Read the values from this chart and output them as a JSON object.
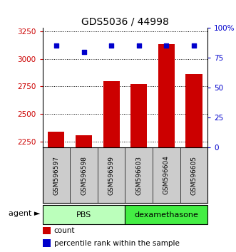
{
  "title": "GDS5036 / 44998",
  "samples": [
    "GSM596597",
    "GSM596598",
    "GSM596599",
    "GSM596603",
    "GSM596604",
    "GSM596605"
  ],
  "counts": [
    2340,
    2310,
    2800,
    2775,
    3130,
    2860
  ],
  "percentiles": [
    85,
    80,
    85,
    85,
    85,
    85
  ],
  "ylim_left": [
    2200,
    3280
  ],
  "ylim_right": [
    0,
    100
  ],
  "yticks_left": [
    2250,
    2500,
    2750,
    3000,
    3250
  ],
  "yticks_right": [
    0,
    25,
    50,
    75,
    100
  ],
  "ytick_labels_right": [
    "0",
    "25",
    "50",
    "75",
    "100%"
  ],
  "bar_color": "#cc0000",
  "dot_color": "#0000cc",
  "group_labels": [
    "PBS",
    "dexamethasone"
  ],
  "group_colors": [
    "#bbffbb",
    "#44ee44"
  ],
  "axis_left_color": "#cc0000",
  "axis_right_color": "#0000cc",
  "bar_width": 0.6,
  "agent_label": "agent",
  "figsize": [
    3.31,
    3.54
  ],
  "dpi": 100
}
